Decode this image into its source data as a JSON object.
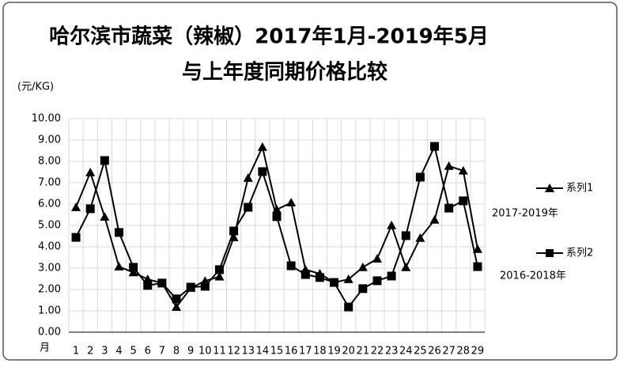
{
  "chart_data": {
    "type": "line",
    "title": "哈尔滨市蔬菜（辣椒）2017年1月-2019年5月",
    "subtitle": "与上年度同期价格比较",
    "ylabel": "(元/KG)",
    "xlabel": "月",
    "categories": [
      "1",
      "2",
      "3",
      "4",
      "5",
      "6",
      "7",
      "8",
      "9",
      "10",
      "11",
      "12",
      "13",
      "14",
      "15",
      "16",
      "17",
      "18",
      "19",
      "20",
      "21",
      "22",
      "23",
      "24",
      "25",
      "26",
      "27",
      "28",
      "29"
    ],
    "series": [
      {
        "name": "系列1",
        "note": "2017-2019年",
        "color": "#000000",
        "marker": "triangle",
        "values": [
          5.85,
          7.48,
          5.4,
          3.07,
          2.8,
          2.48,
          2.3,
          1.18,
          2.07,
          2.4,
          2.6,
          4.44,
          7.22,
          8.67,
          5.74,
          6.07,
          2.93,
          2.74,
          2.33,
          2.48,
          3.04,
          3.44,
          5.0,
          3.04,
          4.41,
          5.26,
          7.78,
          7.56,
          3.89
        ]
      },
      {
        "name": "系列2",
        "note": "2016-2018年",
        "color": "#000000",
        "marker": "square",
        "values": [
          4.44,
          5.78,
          8.04,
          4.67,
          3.04,
          2.19,
          2.3,
          1.56,
          2.11,
          2.15,
          2.93,
          4.74,
          5.85,
          7.52,
          5.41,
          3.11,
          2.7,
          2.56,
          2.33,
          1.18,
          2.04,
          2.41,
          2.63,
          4.52,
          7.26,
          8.7,
          5.81,
          6.15,
          3.07
        ]
      }
    ],
    "ylim": [
      0,
      10
    ],
    "yticks": [
      {
        "value": 0,
        "label": "0.00"
      },
      {
        "value": 1,
        "label": "1.00"
      },
      {
        "value": 2,
        "label": "2.00"
      },
      {
        "value": 3,
        "label": "3.00"
      },
      {
        "value": 4,
        "label": "4.00"
      },
      {
        "value": 5,
        "label": "5.00"
      },
      {
        "value": 6,
        "label": "6.00"
      },
      {
        "value": 7,
        "label": "7.00"
      },
      {
        "value": 8,
        "label": "8.00"
      },
      {
        "value": 9,
        "label": "9.00"
      },
      {
        "value": 10,
        "label": "10.00"
      }
    ],
    "grid": true
  }
}
